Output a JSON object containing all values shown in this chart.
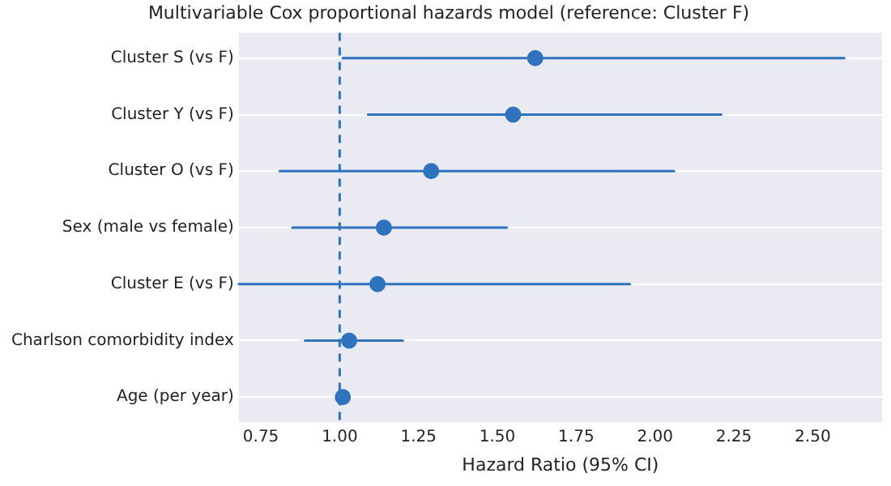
{
  "chart_data": {
    "type": "scatter",
    "title": "Multivariable Cox proportional hazards model (reference: Cluster F)",
    "xlabel": "Hazard Ratio (95% CI)",
    "orientation": "horizontal",
    "categories": [
      "Cluster S (vs F)",
      "Cluster Y (vs F)",
      "Cluster O (vs F)",
      "Sex (male vs female)",
      "Cluster E (vs F)",
      "Charlson comorbidity index",
      "Age (per year)"
    ],
    "values": [
      1.62,
      1.55,
      1.29,
      1.14,
      1.12,
      1.03,
      1.01
    ],
    "errors": [
      [
        1.01,
        2.6
      ],
      [
        1.09,
        2.21
      ],
      [
        0.81,
        2.06
      ],
      [
        0.85,
        1.53
      ],
      [
        0.68,
        1.92
      ],
      [
        0.89,
        1.2
      ],
      [
        1.0,
        1.02
      ]
    ],
    "color": "#2f72be",
    "marker": "circle",
    "xlim": [
      0.68,
      2.72
    ],
    "xticks": [
      {
        "value": 0.75,
        "label": "0.75"
      },
      {
        "value": 1,
        "label": "1.00"
      },
      {
        "value": 1.25,
        "label": "1.25"
      },
      {
        "value": 1.5,
        "label": "1.50"
      },
      {
        "value": 1.75,
        "label": "1.75"
      },
      {
        "value": 2,
        "label": "2.00"
      },
      {
        "value": 2.25,
        "label": "2.25"
      },
      {
        "value": 2.5,
        "label": "2.50"
      }
    ],
    "ref_lines": [
      {
        "axis": "x",
        "value": 1,
        "color": "#2f72be",
        "line_style": "dashed"
      }
    ],
    "grid": "y"
  }
}
